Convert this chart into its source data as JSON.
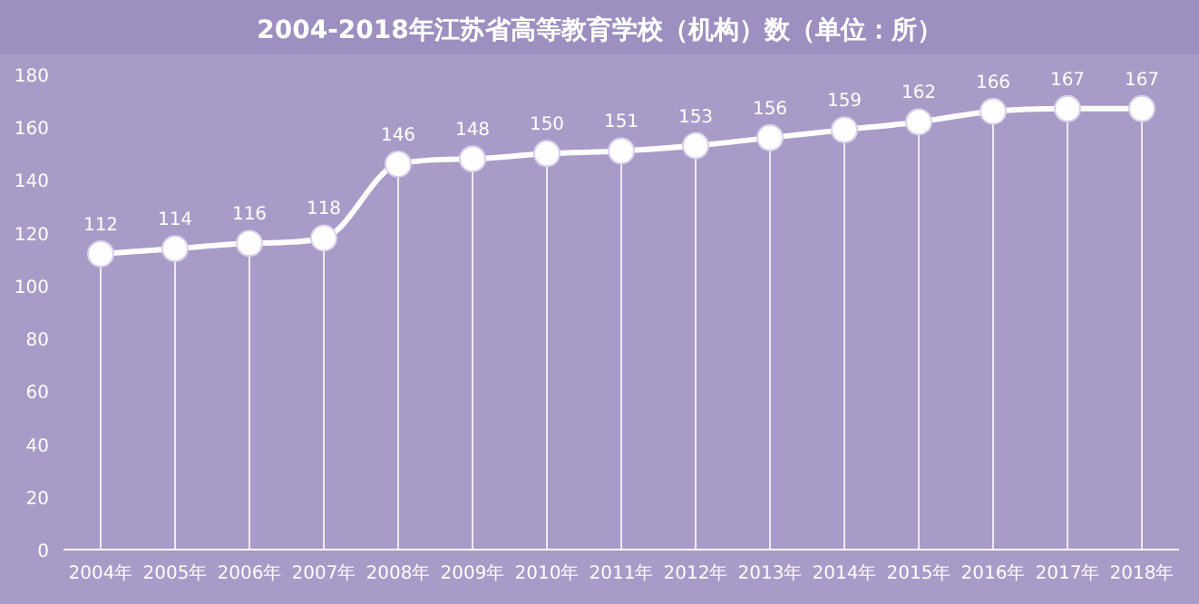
{
  "chart_data": {
    "type": "line",
    "title": "2004-2018年江苏省高等教育学校（机构）数（单位：所）",
    "categories": [
      "2004年",
      "2005年",
      "2006年",
      "2007年",
      "2008年",
      "2009年",
      "2010年",
      "2011年",
      "2012年",
      "2013年",
      "2014年",
      "2015年",
      "2016年",
      "2017年",
      "2018年"
    ],
    "values": [
      112,
      114,
      116,
      118,
      146,
      148,
      150,
      151,
      153,
      156,
      159,
      162,
      166,
      167,
      167
    ],
    "color": "#ffffff",
    "ylim": [
      0,
      180
    ],
    "yticks": [
      0,
      20,
      40,
      60,
      80,
      100,
      120,
      140,
      160,
      180
    ],
    "grid": "x",
    "marker": "circle",
    "line_style": "solid",
    "data_labels": true
  }
}
